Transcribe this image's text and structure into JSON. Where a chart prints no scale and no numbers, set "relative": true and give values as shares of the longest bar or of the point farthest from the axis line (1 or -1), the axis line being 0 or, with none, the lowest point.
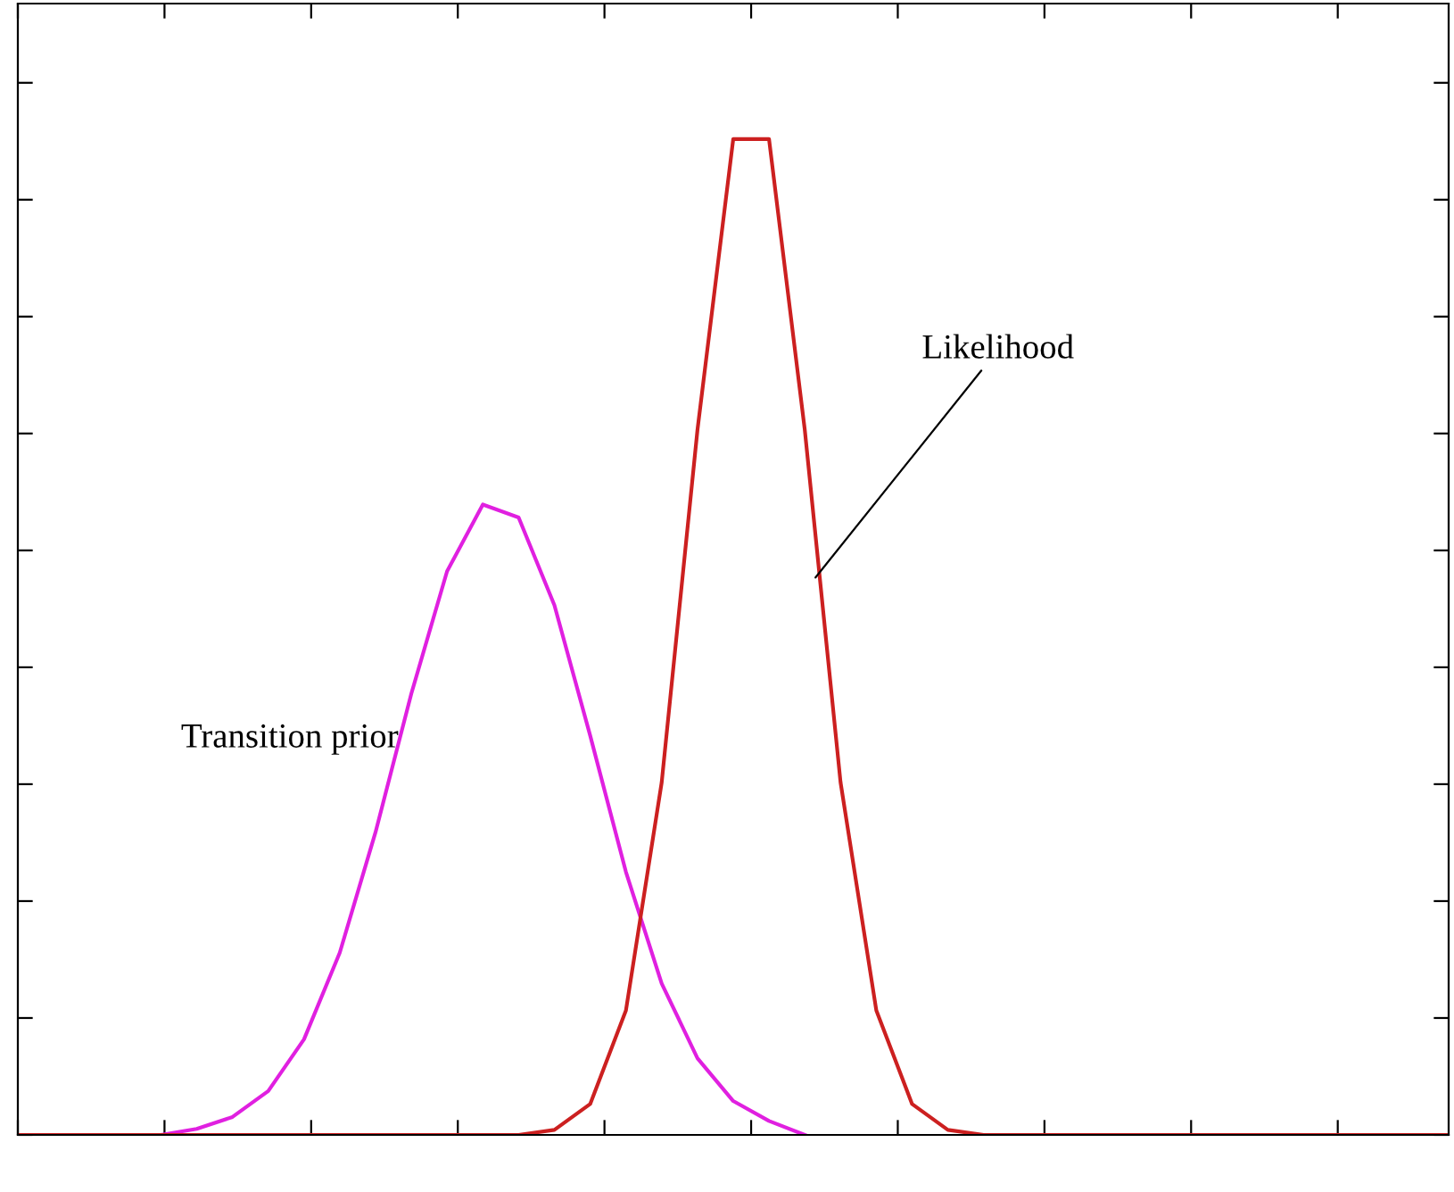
{
  "chart_data": {
    "type": "line",
    "relative": true,
    "tick_labels": false,
    "grid": false,
    "legend": false,
    "categories": [
      null,
      null,
      null,
      null,
      null,
      null,
      null,
      null,
      null,
      null,
      null,
      null,
      null,
      null,
      null,
      null,
      null,
      null,
      null,
      null,
      null,
      null,
      null,
      null,
      null,
      null,
      null,
      null,
      null,
      null,
      null,
      null,
      null,
      null,
      null,
      null,
      null,
      null,
      null,
      null,
      null
    ],
    "series": [
      {
        "color": "#e020e0",
        "values": [
          null,
          null,
          null,
          null,
          0,
          0.006,
          0.018,
          0.044,
          0.096,
          0.183,
          0.304,
          0.443,
          0.566,
          0.633,
          0.62,
          0.532,
          0.401,
          0.264,
          0.152,
          0.077,
          0.034,
          0.014,
          0,
          null,
          null,
          null,
          null,
          null,
          null,
          null,
          null,
          null,
          null,
          null,
          null,
          null,
          null,
          null,
          null,
          null,
          null
        ]
      },
      {
        "color": "#cc2020",
        "values": [
          0,
          0,
          0,
          0,
          0,
          0,
          0,
          0,
          0,
          0,
          0,
          0,
          0,
          0,
          0,
          0.005,
          0.031,
          0.125,
          0.354,
          0.708,
          1,
          1,
          0.708,
          0.354,
          0.125,
          0.031,
          0.005,
          0,
          0,
          0,
          0,
          0,
          0,
          0,
          0,
          0,
          0,
          0,
          0,
          0,
          0
        ]
      }
    ],
    "annotations": [
      "Likelihood",
      "Transition prior"
    ]
  }
}
